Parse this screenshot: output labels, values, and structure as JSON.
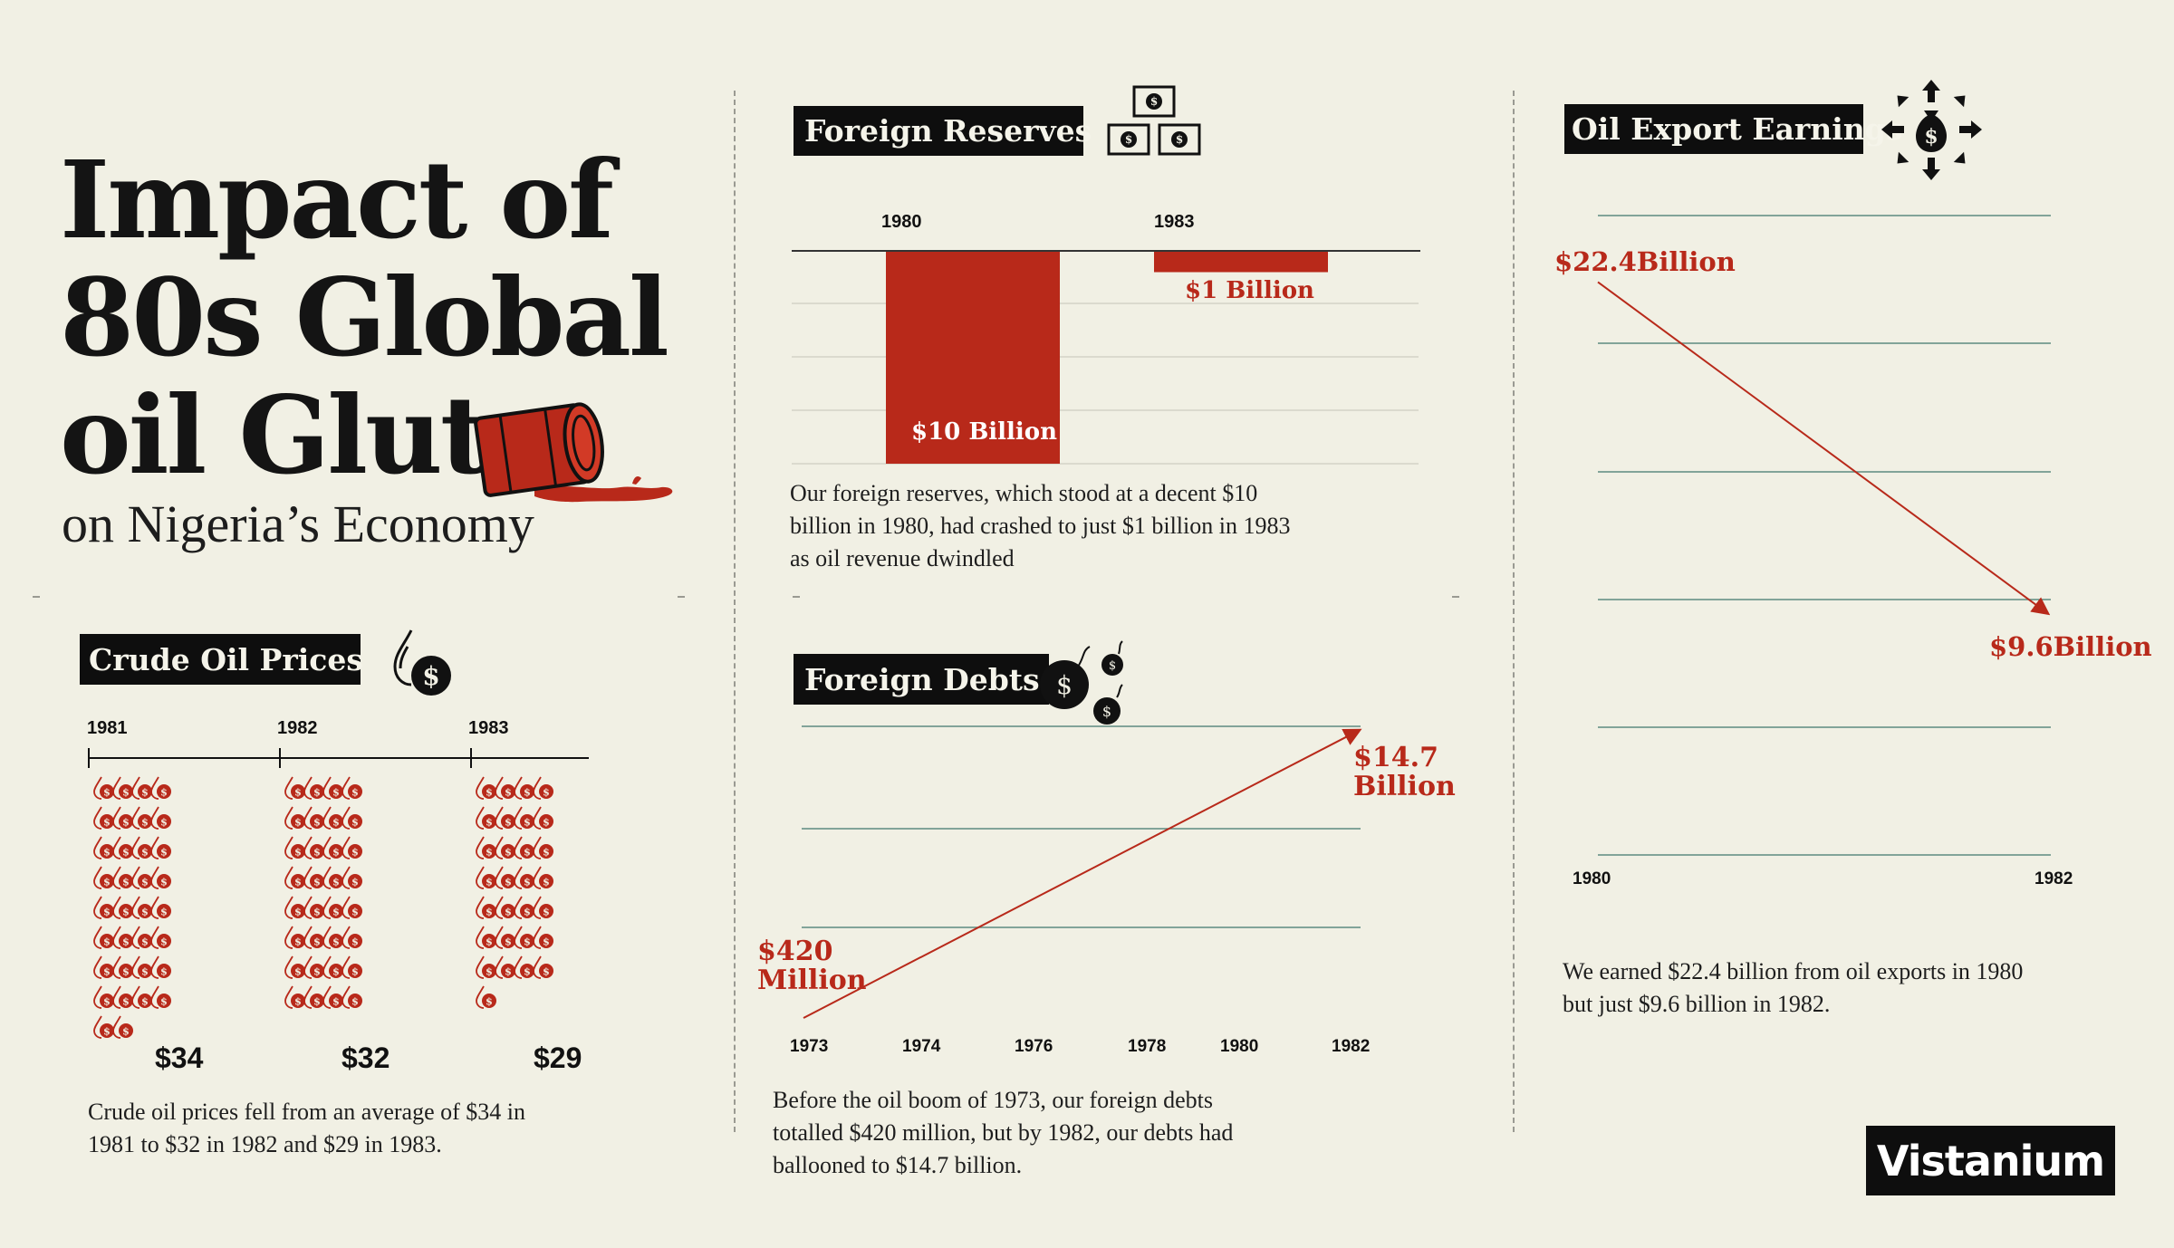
{
  "title": {
    "line1": "Impact of",
    "line2": "80s Global",
    "line3": "oil Glut",
    "subtitle": "on Nigeria’s Economy"
  },
  "colors": {
    "background": "#f1f0e4",
    "accent": "#b8291a",
    "ink": "#0e0e0e",
    "grid": "#5e8a80"
  },
  "foreign_reserves": {
    "label": "Foreign Reserves",
    "icon": "money-stack-icon",
    "description": "Our foreign reserves, which stood at a decent $10 billion in 1980, had crashed to just $1 billion in 1983 as oil revenue dwindled"
  },
  "foreign_debts": {
    "label": "Foreign Debts",
    "icon": "money-bomb-icon",
    "description": "Before the oil boom of 1973, our foreign debts totalled $420 million, but by 1982, our debts had ballooned to $14.7 billion."
  },
  "oil_export": {
    "label": "Oil Export Earnings",
    "icon": "money-bag-arrows-icon",
    "description": "We earned $22.4 billion from oil exports in 1980 but just $9.6 billion in 1982."
  },
  "crude_prices": {
    "label": "Crude Oil Prices",
    "icon": "oil-drop-dollar-icon",
    "drop_icon": "oil-drop-dollar-icon",
    "description": "Crude oil prices fell from an average of $34 in 1981 to $32 in 1982 and $29 in 1983."
  },
  "logo": "Vistanium",
  "chart_data": [
    {
      "type": "bar",
      "categories": [
        "1980",
        "1983"
      ],
      "values": [
        10,
        1
      ],
      "value_labels": [
        "$10 Billion",
        "$1 Billion"
      ],
      "unit": "billion USD"
    },
    {
      "type": "line",
      "x": [
        1973,
        1982
      ],
      "values": [
        0.42,
        14.7
      ],
      "value_labels": [
        "$420 Million",
        "$14.7 Billion"
      ],
      "xticks": [
        "1973",
        "1974",
        "1976",
        "1978",
        "1980",
        "1982"
      ],
      "unit": "billion USD"
    },
    {
      "type": "line",
      "x": [
        1980,
        1982
      ],
      "values": [
        22.4,
        9.6
      ],
      "value_labels": [
        "$22.4Billion",
        "$9.6Billion"
      ],
      "xticks": [
        "1980",
        "1982"
      ],
      "unit": "billion USD"
    },
    {
      "type": "bar",
      "categories": [
        "1981",
        "1982",
        "1983"
      ],
      "values": [
        34,
        32,
        29
      ],
      "value_labels": [
        "$34",
        "$32",
        "$29"
      ],
      "unit": "USD per barrel"
    }
  ]
}
